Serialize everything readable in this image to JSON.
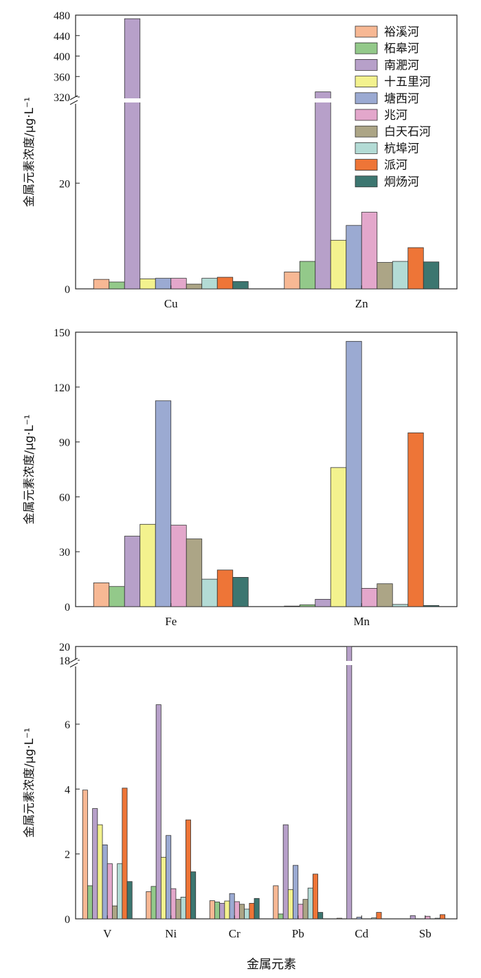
{
  "series_names": [
    "裕溪河",
    "柘皋河",
    "南淝河",
    "十五里河",
    "塘西河",
    "兆河",
    "白天石河",
    "杭埠河",
    "派河",
    "炯炀河"
  ],
  "colors": [
    "#F7B894",
    "#93C98A",
    "#B7A0C9",
    "#F3F28E",
    "#9BAAD2",
    "#E3A7CB",
    "#ACA586",
    "#B3DBD5",
    "#EE7537",
    "#3C7670"
  ],
  "chart_data": [
    {
      "type": "bar",
      "categories": [
        "Cu",
        "Zn"
      ],
      "ylabel": "金属元素浓度/μg·L⁻¹",
      "xlabel": "",
      "axis_break": {
        "lower_max": 35,
        "upper_min": 320,
        "upper_max": 480
      },
      "lower_ticks": [
        0,
        20
      ],
      "upper_ticks": [
        320,
        360,
        400,
        440,
        480
      ],
      "legend": "top-right",
      "series": [
        {
          "name": "裕溪河",
          "values": [
            1.8,
            3.2
          ]
        },
        {
          "name": "柘皋河",
          "values": [
            1.3,
            5.2
          ]
        },
        {
          "name": "南淝河",
          "values": [
            473,
            330
          ]
        },
        {
          "name": "十五里河",
          "values": [
            1.9,
            9.2
          ]
        },
        {
          "name": "塘西河",
          "values": [
            2.0,
            12.0
          ]
        },
        {
          "name": "兆河",
          "values": [
            2.0,
            14.5
          ]
        },
        {
          "name": "白天石河",
          "values": [
            0.9,
            5.0
          ]
        },
        {
          "name": "杭埠河",
          "values": [
            2.0,
            5.2
          ]
        },
        {
          "name": "派河",
          "values": [
            2.2,
            7.8
          ]
        },
        {
          "name": "炯炀河",
          "values": [
            1.4,
            5.1
          ]
        }
      ]
    },
    {
      "type": "bar",
      "categories": [
        "Fe",
        "Mn"
      ],
      "ylabel": "金属元素浓度/μg·L⁻¹",
      "xlabel": "",
      "ylim": [
        0,
        150
      ],
      "ticks": [
        0,
        30,
        60,
        90,
        120,
        150
      ],
      "series": [
        {
          "name": "裕溪河",
          "values": [
            13,
            0.3
          ]
        },
        {
          "name": "柘皋河",
          "values": [
            11,
            1.0
          ]
        },
        {
          "name": "南淝河",
          "values": [
            38.5,
            4.0
          ]
        },
        {
          "name": "十五里河",
          "values": [
            45,
            76
          ]
        },
        {
          "name": "塘西河",
          "values": [
            112.5,
            145
          ]
        },
        {
          "name": "兆河",
          "values": [
            44.5,
            10
          ]
        },
        {
          "name": "白天石河",
          "values": [
            37,
            12.5
          ]
        },
        {
          "name": "杭埠河",
          "values": [
            15,
            1.2
          ]
        },
        {
          "name": "派河",
          "values": [
            20,
            95
          ]
        },
        {
          "name": "炯炀河",
          "values": [
            16,
            0.6
          ]
        }
      ]
    },
    {
      "type": "bar",
      "categories": [
        "V",
        "Ni",
        "Cr",
        "Pb",
        "Cd",
        "Sb"
      ],
      "ylabel": "金属元素浓度/μg·L⁻¹",
      "xlabel": "金属元素",
      "axis_break": {
        "lower_max": 7.8,
        "upper_min": 18,
        "upper_max": 20
      },
      "lower_ticks": [
        0,
        2,
        4,
        6
      ],
      "upper_ticks": [
        18,
        20
      ],
      "series": [
        {
          "name": "裕溪河",
          "values": [
            3.97,
            0.84,
            0.56,
            1.02,
            0.02,
            0.0
          ]
        },
        {
          "name": "柘皋河",
          "values": [
            1.02,
            1.0,
            0.52,
            0.15,
            0.0,
            0.0
          ]
        },
        {
          "name": "南淝河",
          "values": [
            3.4,
            6.6,
            0.48,
            2.9,
            20.0,
            0.1
          ]
        },
        {
          "name": "十五里河",
          "values": [
            2.9,
            1.9,
            0.55,
            0.9,
            0.0,
            0.0
          ]
        },
        {
          "name": "塘西河",
          "values": [
            2.28,
            2.57,
            0.78,
            1.65,
            0.05,
            0.0
          ]
        },
        {
          "name": "兆河",
          "values": [
            1.7,
            0.93,
            0.53,
            0.45,
            0.0,
            0.08
          ]
        },
        {
          "name": "白天石河",
          "values": [
            0.4,
            0.6,
            0.45,
            0.6,
            0.0,
            0.0
          ]
        },
        {
          "name": "杭埠河",
          "values": [
            1.7,
            0.67,
            0.3,
            0.95,
            0.03,
            0.02
          ]
        },
        {
          "name": "派河",
          "values": [
            4.03,
            3.05,
            0.48,
            1.38,
            0.2,
            0.13
          ]
        },
        {
          "name": "炯炀河",
          "values": [
            1.15,
            1.45,
            0.63,
            0.2,
            0.0,
            0.0
          ]
        }
      ]
    }
  ]
}
